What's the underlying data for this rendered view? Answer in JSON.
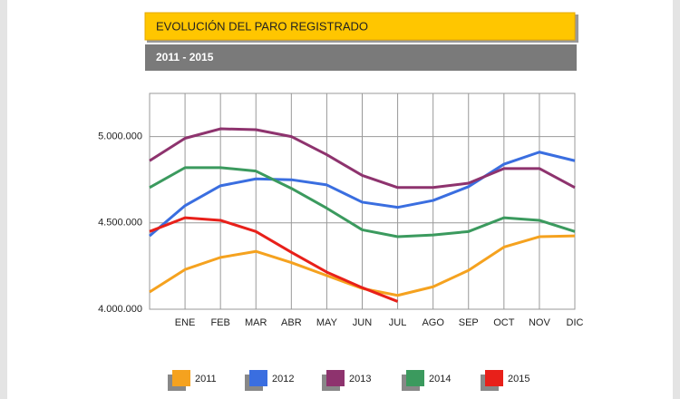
{
  "chart_data": {
    "type": "line",
    "title": "EVOLUCIÓN DEL PARO REGISTRADO",
    "subtitle": "2011 - 2015",
    "categories": [
      null,
      "ENE",
      "FEB",
      "MAR",
      "ABR",
      "MAY",
      "JUN",
      "JUL",
      "AGO",
      "SEP",
      "OCT",
      "NOV",
      "DIC"
    ],
    "series": [
      {
        "name": "2011",
        "color": "#f5a21f",
        "values": [
          4100000,
          4230000,
          4300000,
          4335000,
          4270000,
          4195000,
          4120000,
          4080000,
          4130000,
          4225000,
          4360000,
          4420000,
          4425000
        ]
      },
      {
        "name": "2012",
        "color": "#3a6ee0",
        "values": [
          4425000,
          4600000,
          4715000,
          4755000,
          4750000,
          4720000,
          4620000,
          4590000,
          4630000,
          4710000,
          4840000,
          4910000,
          4860000
        ]
      },
      {
        "name": "2013",
        "color": "#8e336e",
        "values": [
          4860000,
          4990000,
          5045000,
          5040000,
          5000000,
          4895000,
          4775000,
          4705000,
          4705000,
          4730000,
          4815000,
          4815000,
          4705000
        ]
      },
      {
        "name": "2014",
        "color": "#3b9a5e",
        "values": [
          4705000,
          4820000,
          4820000,
          4800000,
          4700000,
          4585000,
          4460000,
          4420000,
          4430000,
          4450000,
          4530000,
          4515000,
          4450000
        ]
      },
      {
        "name": "2015",
        "color": "#e8201a",
        "values": [
          4450000,
          4530000,
          4515000,
          4450000,
          4330000,
          4215000,
          4125000,
          4045000,
          null,
          null,
          null,
          null,
          null
        ]
      }
    ],
    "ylim": [
      4000000,
      5250000
    ],
    "yticks": [
      {
        "value": 4000000,
        "label": "4.000.000"
      },
      {
        "value": 4500000,
        "label": "4.500.000"
      },
      {
        "value": 5000000,
        "label": "5.000.000"
      }
    ],
    "grid": true
  }
}
